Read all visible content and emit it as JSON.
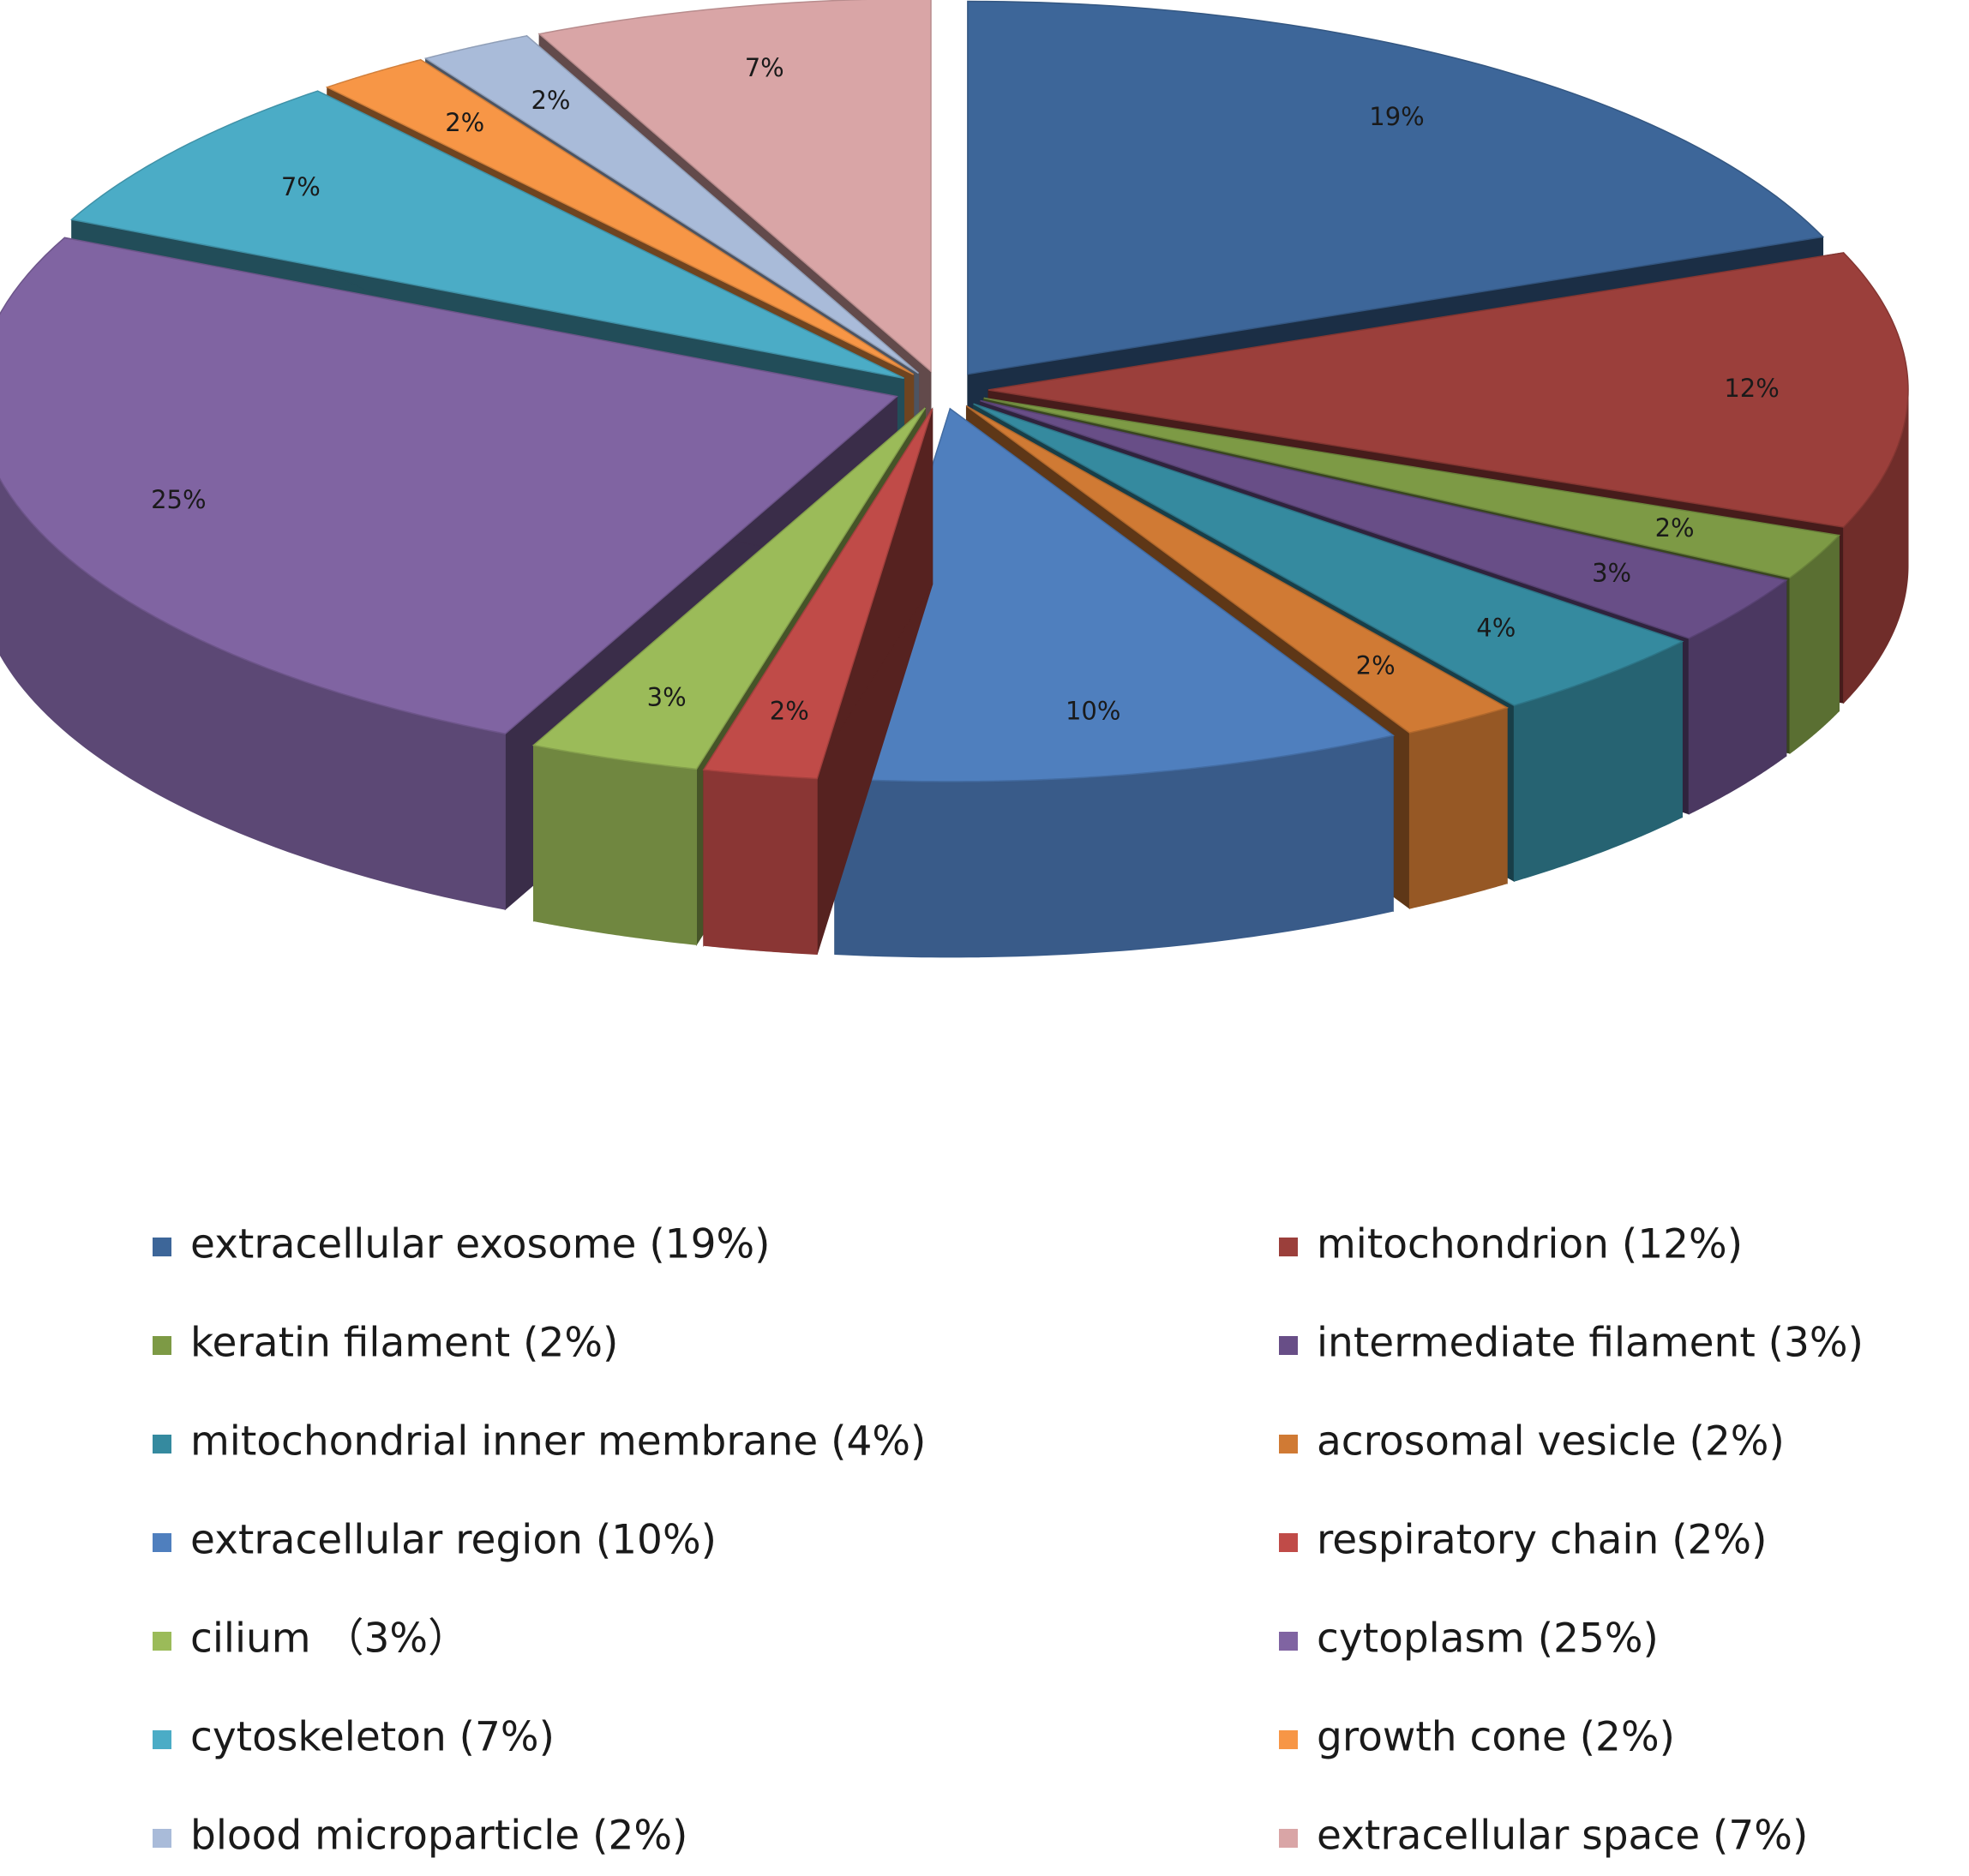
{
  "chart_data": {
    "type": "pie",
    "style": "3d-exploded",
    "legend_position": "bottom",
    "slices": [
      {
        "label": "extracellular exosome (19%)",
        "value": 19,
        "pct_label": "19%",
        "color": "#3d6699"
      },
      {
        "label": "mitochondrion (12%)",
        "value": 12,
        "pct_label": "12%",
        "color": "#9b3f3b"
      },
      {
        "label": "keratin filament (2%)",
        "value": 2,
        "pct_label": "2%",
        "color": "#7d9a45"
      },
      {
        "label": "intermediate filament (3%)",
        "value": 3,
        "pct_label": "3%",
        "color": "#684e87"
      },
      {
        "label": "mitochondrial inner membrane (4%)",
        "value": 4,
        "pct_label": "4%",
        "color": "#358a9f"
      },
      {
        "label": "acrosomal vesicle (2%)",
        "value": 2,
        "pct_label": "2%",
        "color": "#d07a34"
      },
      {
        "label": "extracellular region (10%)",
        "value": 10,
        "pct_label": "10%",
        "color": "#4f7fbe"
      },
      {
        "label": "respiratory chain (2%)",
        "value": 2,
        "pct_label": "2%",
        "color": "#c04b48"
      },
      {
        "label": "cilium （3%）",
        "value": 3,
        "pct_label": "3%",
        "color": "#9bbb59"
      },
      {
        "label": "cytoplasm (25%)",
        "value": 25,
        "pct_label": "25%",
        "color": "#8064a2"
      },
      {
        "label": "cytoskeleton (7%)",
        "value": 7,
        "pct_label": "7%",
        "color": "#4bacc6"
      },
      {
        "label": "growth cone (2%)",
        "value": 2,
        "pct_label": "2%",
        "color": "#f79646"
      },
      {
        "label": "blood microparticle (2%)",
        "value": 2,
        "pct_label": "2%",
        "color": "#a9bbd9"
      },
      {
        "label": "extracellular space (7%)",
        "value": 7,
        "pct_label": "7%",
        "color": "#d9a5a6"
      }
    ]
  }
}
